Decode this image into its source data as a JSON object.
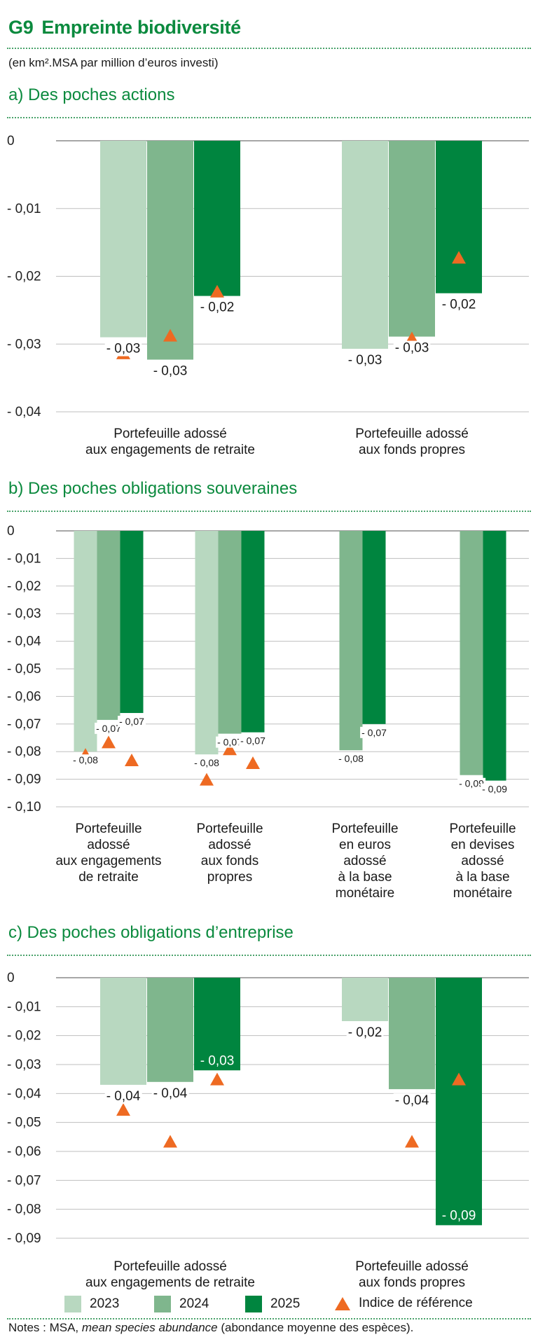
{
  "figure": {
    "number": "G9",
    "title": "Empreinte biodiversité",
    "subtitle": "(en km².MSA par million d’euros investi)"
  },
  "colors": {
    "c2023": "#b8d8c0",
    "c2024": "#7fb68d",
    "c2025": "#00853f",
    "ref": "#ee6a22",
    "accent": "#0b8a3e"
  },
  "legend": {
    "items": [
      {
        "label": "2023",
        "color": "#b8d8c0"
      },
      {
        "label": "2024",
        "color": "#7fb68d"
      },
      {
        "label": "2025",
        "color": "#00853f"
      }
    ],
    "ref_label": "Indice de référence"
  },
  "notes": {
    "prefix": "Notes : MSA, ",
    "italic": "mean species abundance",
    "suffix": " (abondance moyenne des espèces)."
  },
  "chart_data": [
    {
      "type": "bar",
      "title": "a)  Des poches actions",
      "ylim": [
        -0.04,
        0
      ],
      "yticks": [
        0,
        -0.01,
        -0.02,
        -0.03,
        -0.04
      ],
      "ytick_labels": [
        "0",
        "- 0,01",
        "- 0,02",
        "- 0,03",
        "- 0,04"
      ],
      "grid": true,
      "legend": "bottom",
      "groups": [
        {
          "label": [
            "Portefeuille adossé",
            "aux engagements de retraite"
          ],
          "bars": [
            {
              "series": "2023",
              "value": -0.029,
              "label": "- 0,03"
            },
            {
              "series": "2024",
              "value": -0.0323,
              "label": "- 0,03"
            },
            {
              "series": "2025",
              "value": -0.0229,
              "label": "- 0,02"
            }
          ],
          "reference": [
            -0.0313,
            -0.0287,
            -0.0222
          ]
        },
        {
          "label": [
            "Portefeuille adossé",
            "aux fonds propres"
          ],
          "bars": [
            {
              "series": "2023",
              "value": -0.0307,
              "label": "- 0,03"
            },
            {
              "series": "2024",
              "value": -0.0289,
              "label": "- 0,03"
            },
            {
              "series": "2025",
              "value": -0.0225,
              "label": "- 0,02"
            }
          ],
          "reference": [
            -0.0325,
            -0.0291,
            -0.0172
          ]
        }
      ]
    },
    {
      "type": "bar",
      "title": "b)  Des poches obligations souveraines",
      "ylim": [
        -0.1,
        0
      ],
      "yticks": [
        0,
        -0.01,
        -0.02,
        -0.03,
        -0.04,
        -0.05,
        -0.06,
        -0.07,
        -0.08,
        -0.09,
        -0.1
      ],
      "ytick_labels": [
        "0",
        "- 0,01",
        "- 0,02",
        "- 0,03",
        "- 0,04",
        "- 0,05",
        "- 0,06",
        "- 0,07",
        "- 0,08",
        "- 0,09",
        "- 0,10"
      ],
      "grid": true,
      "legend": "bottom",
      "groups": [
        {
          "label": [
            "Portefeuille",
            "adossé",
            "aux engagements",
            "de retraite"
          ],
          "bars": [
            {
              "series": "2023",
              "value": -0.08,
              "label": "- 0,08"
            },
            {
              "series": "2024",
              "value": -0.0685,
              "label": "- 0,07"
            },
            {
              "series": "2025",
              "value": -0.066,
              "label": "- 0,07"
            }
          ],
          "reference": [
            -0.081,
            -0.0765,
            -0.083
          ]
        },
        {
          "label": [
            "Portefeuille",
            "adossé",
            "aux fonds",
            "propres"
          ],
          "bars": [
            {
              "series": "2023",
              "value": -0.081,
              "label": "- 0,08"
            },
            {
              "series": "2024",
              "value": -0.0735,
              "label": "- 0,07"
            },
            {
              "series": "2025",
              "value": -0.073,
              "label": "- 0,07"
            }
          ],
          "reference": [
            -0.09,
            -0.079,
            -0.084
          ]
        },
        {
          "label": [
            "Portefeuille",
            "en euros",
            "adossé",
            "à la base",
            "monétaire"
          ],
          "bars": [
            {
              "series": "2024",
              "value": -0.0795,
              "label": "- 0,08"
            },
            {
              "series": "2025",
              "value": -0.07,
              "label": "- 0,07"
            }
          ],
          "reference": []
        },
        {
          "label": [
            "Portefeuille",
            "en devises",
            "adossé",
            "à la base",
            "monétaire"
          ],
          "bars": [
            {
              "series": "2024",
              "value": -0.0885,
              "label": "- 0,09"
            },
            {
              "series": "2025",
              "value": -0.0905,
              "label": "- 0,09"
            }
          ],
          "reference": []
        }
      ]
    },
    {
      "type": "bar",
      "title": "c)  Des poches obligations d’entreprise",
      "ylim": [
        -0.09,
        0
      ],
      "yticks": [
        0,
        -0.01,
        -0.02,
        -0.03,
        -0.04,
        -0.05,
        -0.06,
        -0.07,
        -0.08,
        -0.09
      ],
      "ytick_labels": [
        "0",
        "- 0,01",
        "- 0,02",
        "- 0,03",
        "- 0,04",
        "- 0,05",
        "- 0,06",
        "- 0,07",
        "- 0,08",
        "- 0,09"
      ],
      "grid": true,
      "legend": "bottom",
      "groups": [
        {
          "label": [
            "Portefeuille adossé",
            "aux engagements de retraite"
          ],
          "bars": [
            {
              "series": "2023",
              "value": -0.037,
              "label": "- 0,04"
            },
            {
              "series": "2024",
              "value": -0.036,
              "label": "- 0,04"
            },
            {
              "series": "2025",
              "value": -0.032,
              "label": "- 0,03"
            }
          ],
          "reference": [
            -0.0455,
            -0.0565,
            -0.035
          ]
        },
        {
          "label": [
            "Portefeuille adossé",
            "aux fonds propres"
          ],
          "bars": [
            {
              "series": "2023",
              "value": -0.015,
              "label": "- 0,02"
            },
            {
              "series": "2024",
              "value": -0.0385,
              "label": "- 0,04"
            },
            {
              "series": "2025",
              "value": -0.0855,
              "label": "- 0,09"
            }
          ],
          "reference": [
            null,
            -0.0565,
            -0.035
          ]
        }
      ]
    }
  ]
}
